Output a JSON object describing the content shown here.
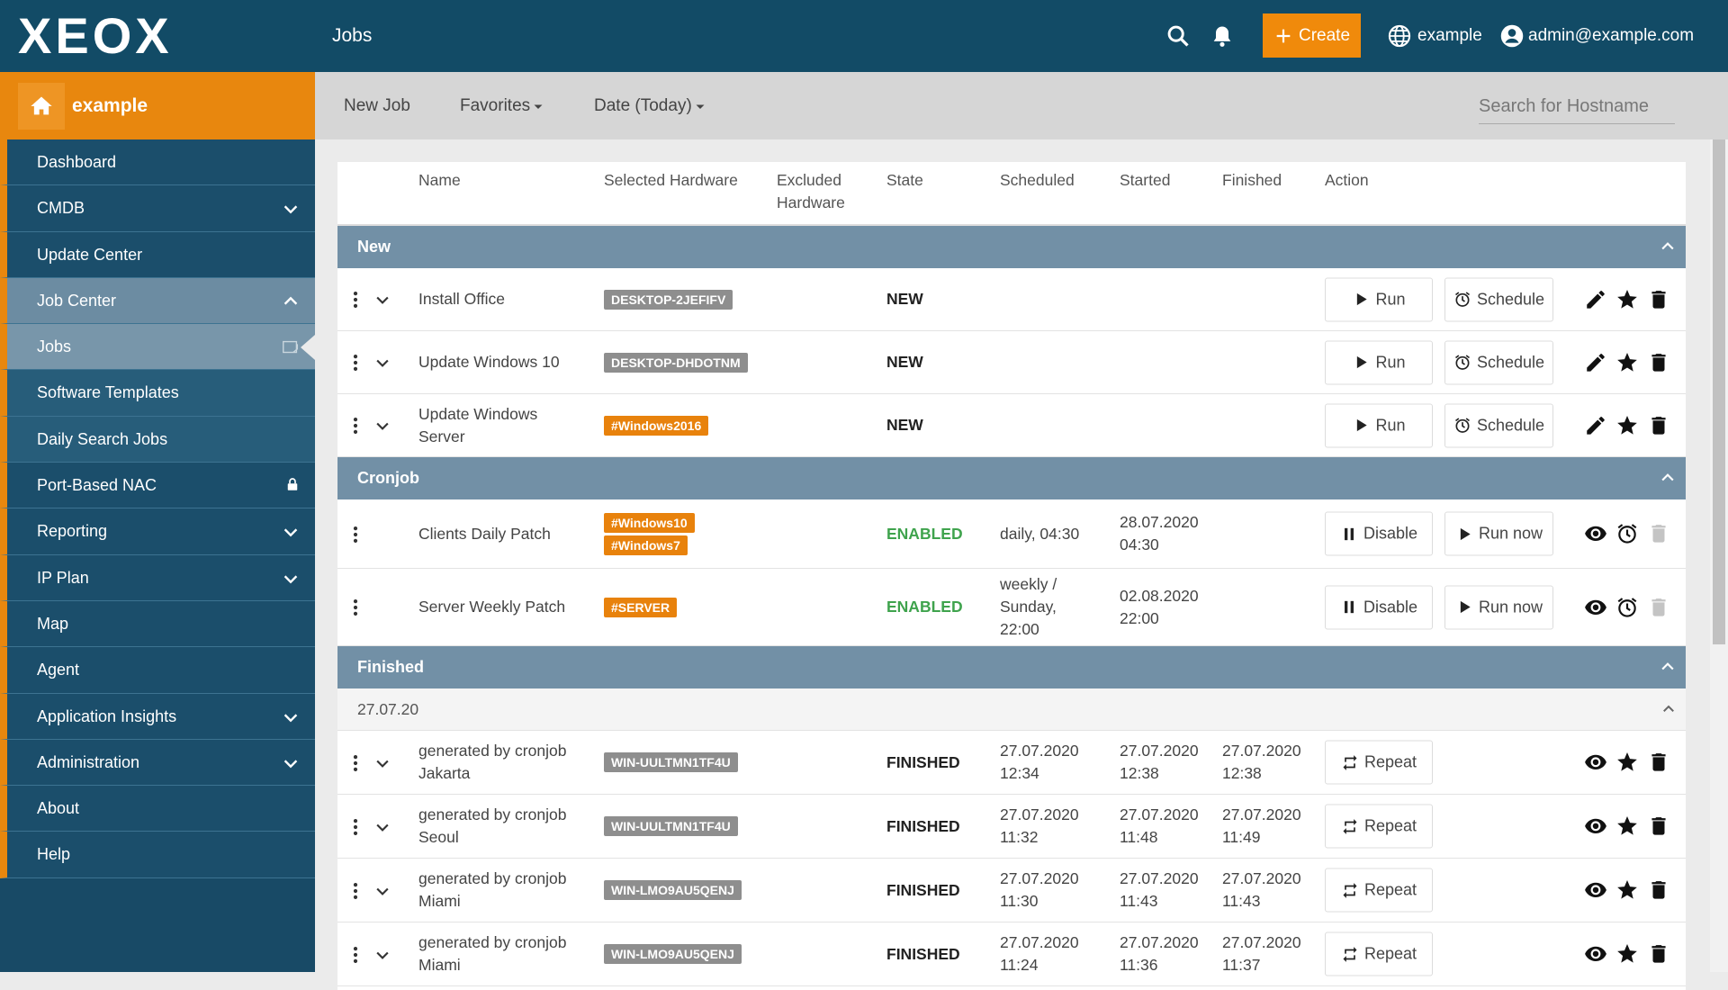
{
  "header": {
    "logo": "XEOX",
    "page_title": "Jobs",
    "create": "Create",
    "tenant": "example",
    "user": "admin@example.com"
  },
  "sidebar": {
    "tenant": "example",
    "items": [
      "Dashboard",
      "CMDB",
      "Update Center",
      "Job Center",
      "Jobs",
      "Software Templates",
      "Daily Search Jobs",
      "Port-Based NAC",
      "Reporting",
      "IP Plan",
      "Map",
      "Agent",
      "Application Insights",
      "Administration",
      "About",
      "Help"
    ]
  },
  "toolbar": {
    "new_job": "New Job",
    "favorites": "Favorites",
    "date": "Date (Today)",
    "search_placeholder": "Search for Hostname"
  },
  "table": {
    "columns": [
      "Name",
      "Selected Hardware",
      "Excluded Hardware",
      "State",
      "Scheduled",
      "Started",
      "Finished",
      "Action"
    ],
    "groups": [
      {
        "title": "New",
        "rows": [
          {
            "name": "Install Office",
            "hardware": [
              "DESKTOP-2JEFIFV"
            ],
            "state": "NEW",
            "actions": [
              "Run",
              "Schedule"
            ]
          },
          {
            "name": "Update Windows 10",
            "hardware": [
              "DESKTOP-DHDOTNM"
            ],
            "state": "NEW",
            "actions": [
              "Run",
              "Schedule"
            ]
          },
          {
            "name": "Update Windows Server",
            "hardware": [
              "#Windows2016"
            ],
            "state": "NEW",
            "actions": [
              "Run",
              "Schedule"
            ]
          }
        ]
      },
      {
        "title": "Cronjob",
        "rows": [
          {
            "name": "Clients Daily Patch",
            "hardware": [
              "#Windows10",
              "#Windows7"
            ],
            "state": "ENABLED",
            "scheduled": "daily, 04:30",
            "started": "28.07.2020 04:30",
            "actions": [
              "Disable",
              "Run now"
            ]
          },
          {
            "name": "Server Weekly Patch",
            "hardware": [
              "#SERVER"
            ],
            "state": "ENABLED",
            "scheduled": "weekly / Sunday, 22:00",
            "started": "02.08.2020 22:00",
            "actions": [
              "Disable",
              "Run now"
            ]
          }
        ]
      },
      {
        "title": "Finished",
        "subgroup": "27.07.20",
        "rows": [
          {
            "name": "generated by cronjob Jakarta",
            "hardware": [
              "WIN-UULTMN1TF4U"
            ],
            "state": "FINISHED",
            "scheduled": "27.07.2020 12:34",
            "started": "27.07.2020 12:38",
            "finished": "27.07.2020 12:38",
            "actions": [
              "Repeat"
            ]
          },
          {
            "name": "generated by cronjob Seoul",
            "hardware": [
              "WIN-UULTMN1TF4U"
            ],
            "state": "FINISHED",
            "scheduled": "27.07.2020 11:32",
            "started": "27.07.2020 11:48",
            "finished": "27.07.2020 11:49",
            "actions": [
              "Repeat"
            ]
          },
          {
            "name": "generated by cronjob Miami",
            "hardware": [
              "WIN-LMO9AU5QENJ"
            ],
            "state": "FINISHED",
            "scheduled": "27.07.2020 11:30",
            "started": "27.07.2020 11:43",
            "finished": "27.07.2020 11:43",
            "actions": [
              "Repeat"
            ]
          },
          {
            "name": "generated by cronjob Miami",
            "hardware": [
              "WIN-LMO9AU5QENJ"
            ],
            "state": "FINISHED",
            "scheduled": "27.07.2020 11:24",
            "started": "27.07.2020 11:36",
            "finished": "27.07.2020 11:37",
            "actions": [
              "Repeat"
            ]
          }
        ]
      }
    ]
  }
}
